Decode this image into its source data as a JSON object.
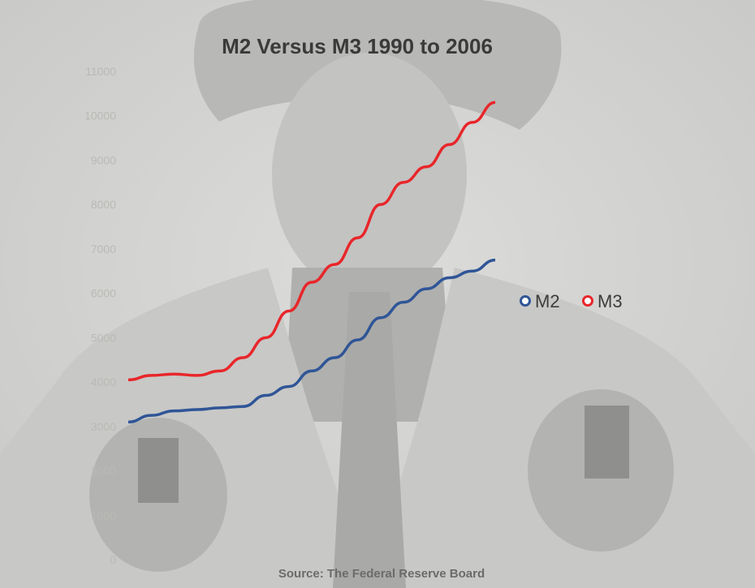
{
  "chart_data": {
    "type": "line",
    "title": "M2 Versus M3 1990 to 2006",
    "xlabel": "",
    "ylabel": "",
    "xlim": [
      1990,
      2006
    ],
    "ylim": [
      0,
      11000
    ],
    "yticks": [
      0,
      1000,
      2000,
      3000,
      4000,
      5000,
      6000,
      7000,
      8000,
      9000,
      10000,
      11000
    ],
    "grid": false,
    "legend_position": "right",
    "source": "Source: The Federal Reserve Board",
    "series": [
      {
        "name": "M2",
        "color": "#2f5597",
        "x": [
          1990,
          1991,
          1992,
          1993,
          1994,
          1995,
          1996,
          1997,
          1998,
          1999,
          2000,
          2001,
          2002,
          2003,
          2004,
          2005,
          2006
        ],
        "values": [
          3100,
          3250,
          3350,
          3380,
          3420,
          3450,
          3700,
          3900,
          4250,
          4550,
          4950,
          5450,
          5800,
          6100,
          6350,
          6500,
          6750
        ]
      },
      {
        "name": "M3",
        "color": "#e8262a",
        "x": [
          1990,
          1991,
          1992,
          1993,
          1994,
          1995,
          1996,
          1997,
          1998,
          1999,
          2000,
          2001,
          2002,
          2003,
          2004,
          2005,
          2006
        ],
        "values": [
          4050,
          4150,
          4180,
          4150,
          4250,
          4550,
          5000,
          5600,
          6250,
          6650,
          7250,
          8000,
          8500,
          8850,
          9350,
          9850,
          10300
        ]
      }
    ]
  }
}
